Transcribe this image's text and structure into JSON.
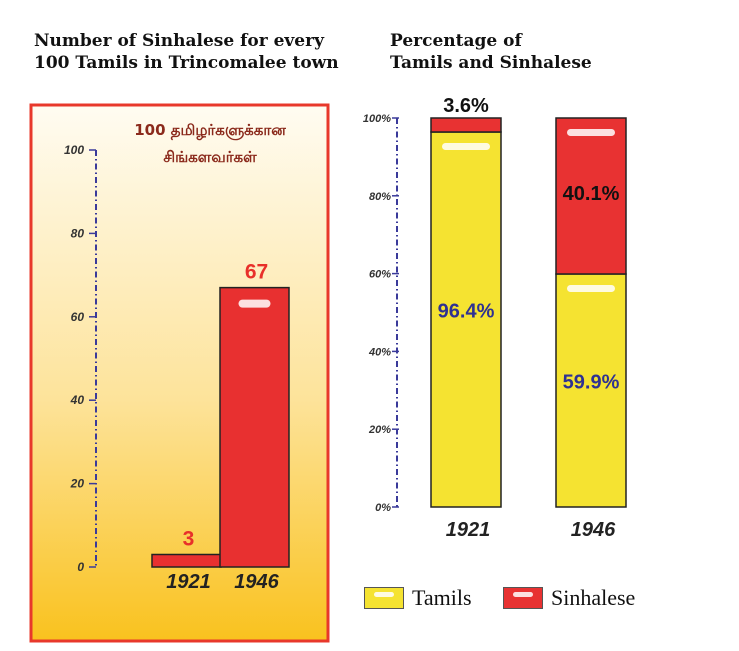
{
  "chart_data": [
    {
      "type": "bar",
      "title_lines": [
        "Number of Sinhalese for every",
        "100 Tamils in Trincomalee town"
      ],
      "inner_label": [
        "100 தமிழர்களுக்கான",
        "சிங்களவர்கள்"
      ],
      "categories": [
        "1921",
        "1946"
      ],
      "values": [
        3,
        67
      ],
      "data_labels": [
        "3",
        "67"
      ],
      "ylim": [
        0,
        100
      ],
      "yticks": [
        "0",
        "20",
        "40",
        "60",
        "80",
        "100"
      ],
      "colors": {
        "bar": "#e83030",
        "label": "#e8302a",
        "inner_label": "#8b2a1c"
      }
    },
    {
      "type": "bar",
      "stacked": true,
      "percent": true,
      "title_lines": [
        "Percentage of",
        "Tamils and Sinhalese"
      ],
      "categories": [
        "1921",
        "1946"
      ],
      "series": [
        {
          "name": "Tamils",
          "values": [
            96.4,
            59.9
          ],
          "labels": [
            "96.4%",
            "59.9%"
          ],
          "color": "#f5e331"
        },
        {
          "name": "Sinhalese",
          "values": [
            3.6,
            40.1
          ],
          "labels": [
            "3.6%",
            "40.1%"
          ],
          "color": "#e83232"
        }
      ],
      "ylim": [
        0,
        100
      ],
      "yticks": [
        "0%",
        "20%",
        "40%",
        "60%",
        "80%",
        "100%"
      ],
      "colors": {
        "tamil_label": "#2e3192",
        "sinhalese_label": "#111111"
      }
    }
  ],
  "legend": {
    "tamils": "Tamils",
    "sinhalese": "Sinhalese"
  }
}
